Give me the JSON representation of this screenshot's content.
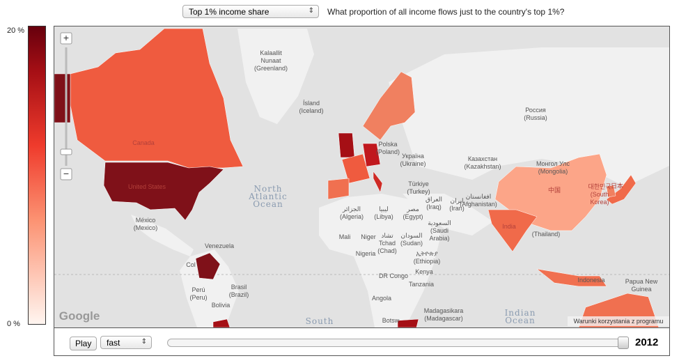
{
  "header": {
    "indicator": "Top 1% income share",
    "question": "What proportion of all income flows just to the country's top 1%?"
  },
  "legend": {
    "max": "20 %",
    "min": "0 %"
  },
  "map": {
    "zoom_in": "+",
    "zoom_out": "−",
    "logo": "Google",
    "terms": "Warunki korzystania z programu",
    "labels": [
      {
        "lines": [
          "Kalaallit",
          "Nunaat",
          "(Greenland)"
        ]
      },
      {
        "lines": [
          "Ísland",
          "(Iceland)"
        ]
      },
      {
        "lines": [
          "Россия",
          "(Russia)"
        ]
      },
      {
        "lines": [
          "Polska",
          "(Poland)"
        ]
      },
      {
        "lines": [
          "Україна",
          "(Ukraine)"
        ]
      },
      {
        "lines": [
          "Казахстан",
          "(Kazakhstan)"
        ]
      },
      {
        "lines": [
          "Монгол Улс",
          "(Mongolia)"
        ]
      },
      {
        "lines": [
          "Türkiye",
          "(Turkey)"
        ]
      },
      {
        "lines": [
          "North",
          "Atlantic",
          "Ocean"
        ]
      },
      {
        "lines": [
          "México",
          "(Mexico)"
        ]
      },
      {
        "lines": [
          "الجزائر",
          "(Algeria)"
        ]
      },
      {
        "lines": [
          "ليبيا",
          "(Libya)"
        ]
      },
      {
        "lines": [
          "مصر",
          "(Egypt)"
        ]
      },
      {
        "lines": [
          "العراق",
          "(Iraq)"
        ]
      },
      {
        "lines": [
          "ایران",
          "(Iran)"
        ]
      },
      {
        "lines": [
          "افغانستان",
          "(Afghanistan)"
        ]
      },
      {
        "lines": [
          "السعودية",
          "(Saudi",
          "Arabia)"
        ]
      },
      {
        "lines": [
          "Mali"
        ]
      },
      {
        "lines": [
          "Niger"
        ]
      },
      {
        "lines": [
          "تشاد",
          "Tchad",
          "(Chad)"
        ]
      },
      {
        "lines": [
          "السودان",
          "(Sudan)"
        ]
      },
      {
        "lines": [
          "Nigeria"
        ]
      },
      {
        "lines": [
          "ኢትዮጵያ",
          "(Ethiopia)"
        ]
      },
      {
        "lines": [
          "Venezuela"
        ]
      },
      {
        "lines": [
          "Col"
        ]
      },
      {
        "lines": [
          "Kenya"
        ]
      },
      {
        "lines": [
          "DR Congo"
        ]
      },
      {
        "lines": [
          "Tanzania"
        ]
      },
      {
        "lines": [
          "Brasil",
          "(Brazil)"
        ]
      },
      {
        "lines": [
          "Perú",
          "(Peru)"
        ]
      },
      {
        "lines": [
          "Bolivia"
        ]
      },
      {
        "lines": [
          "Angola"
        ]
      },
      {
        "lines": [
          "Madagasikara",
          "(Madagascar)"
        ]
      },
      {
        "lines": [
          "Botsw"
        ]
      },
      {
        "lines": [
          "Indonesia"
        ]
      },
      {
        "lines": [
          "Papua New",
          "Guinea"
        ]
      },
      {
        "lines": [
          "(Thailand)"
        ]
      },
      {
        "lines": [
          "Indian",
          "Ocean"
        ]
      },
      {
        "lines": [
          "South"
        ]
      },
      {
        "lines": [
          "Canada"
        ]
      },
      {
        "lines": [
          "United States"
        ]
      },
      {
        "lines": [
          "India"
        ]
      },
      {
        "lines": [
          "中国"
        ]
      },
      {
        "lines": [
          "대한민국",
          "(South",
          "Korea)"
        ]
      },
      {
        "lines": [
          "日本"
        ]
      }
    ]
  },
  "controls": {
    "play": "Play",
    "speed": "fast",
    "year": "2012"
  }
}
